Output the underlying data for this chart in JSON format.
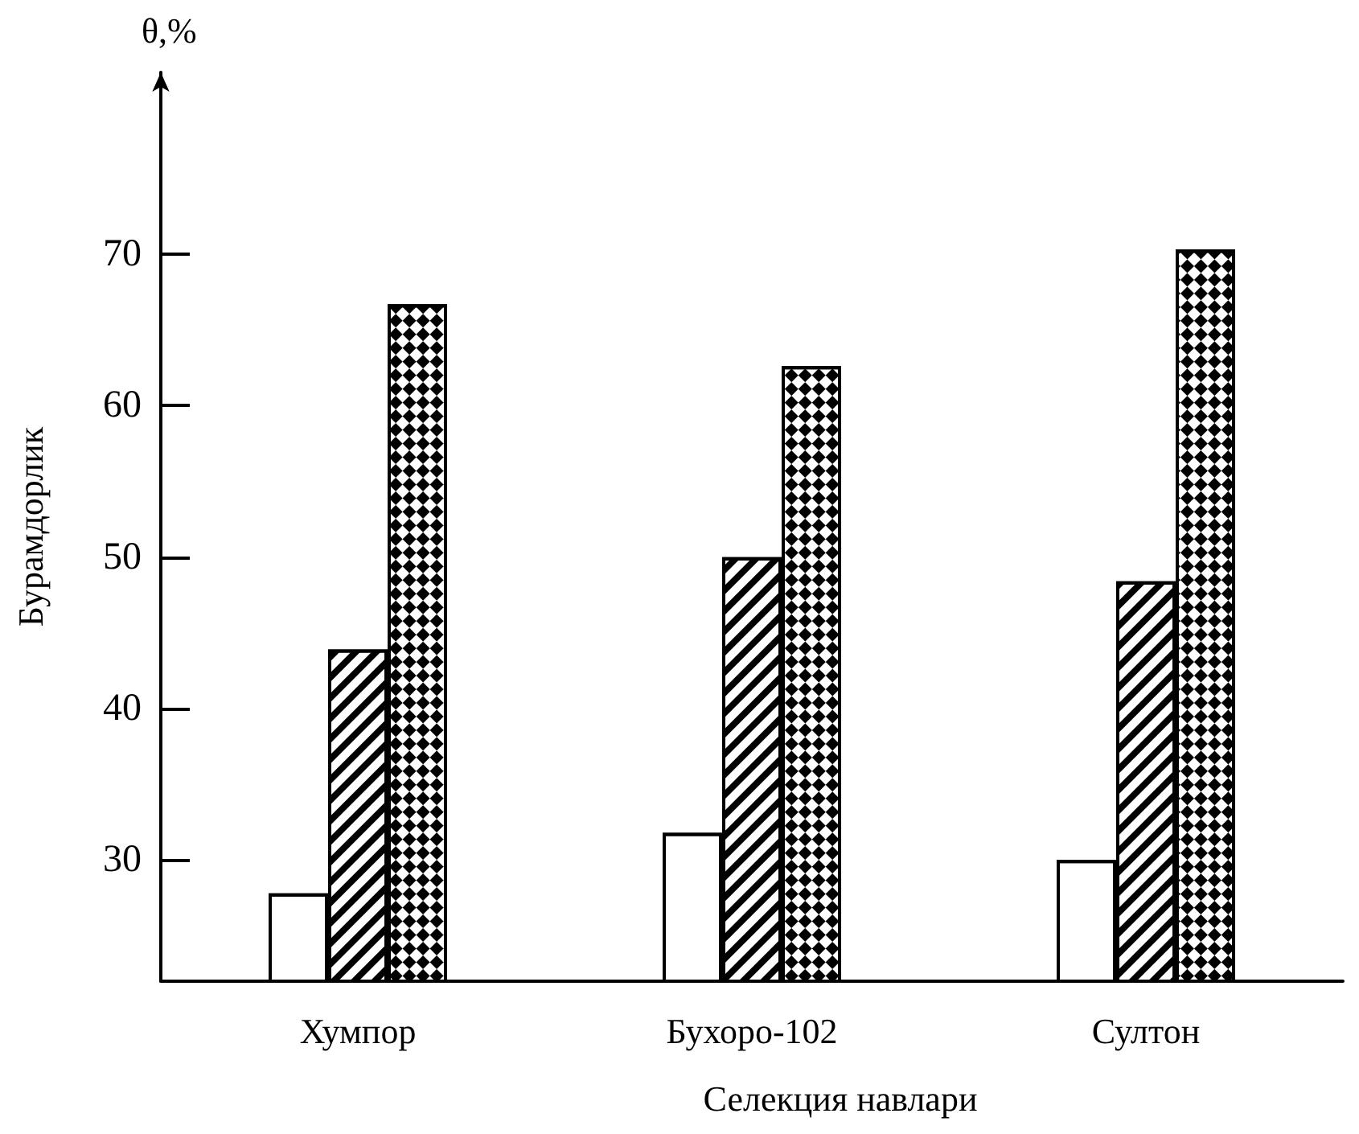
{
  "chart_data": {
    "type": "bar",
    "ylabel": "Бурамдорлик",
    "xlabel": "Селекция навлари",
    "annotations": [
      "θ,%"
    ],
    "categories": [
      "Хумпор",
      "Бухоро-102",
      "Султон"
    ],
    "series": [
      {
        "color": "#ffffff",
        "values": [
          27.8,
          31.8,
          30.0
        ]
      },
      {
        "color": "#000000",
        "values": [
          43.9,
          50.0,
          48.4
        ]
      },
      {
        "color": "#000000",
        "values": [
          66.7,
          62.6,
          70.3
        ]
      }
    ],
    "ylim": [
      22,
      82
    ],
    "yticks": [
      30,
      40,
      50,
      60,
      70
    ],
    "grid": false
  }
}
